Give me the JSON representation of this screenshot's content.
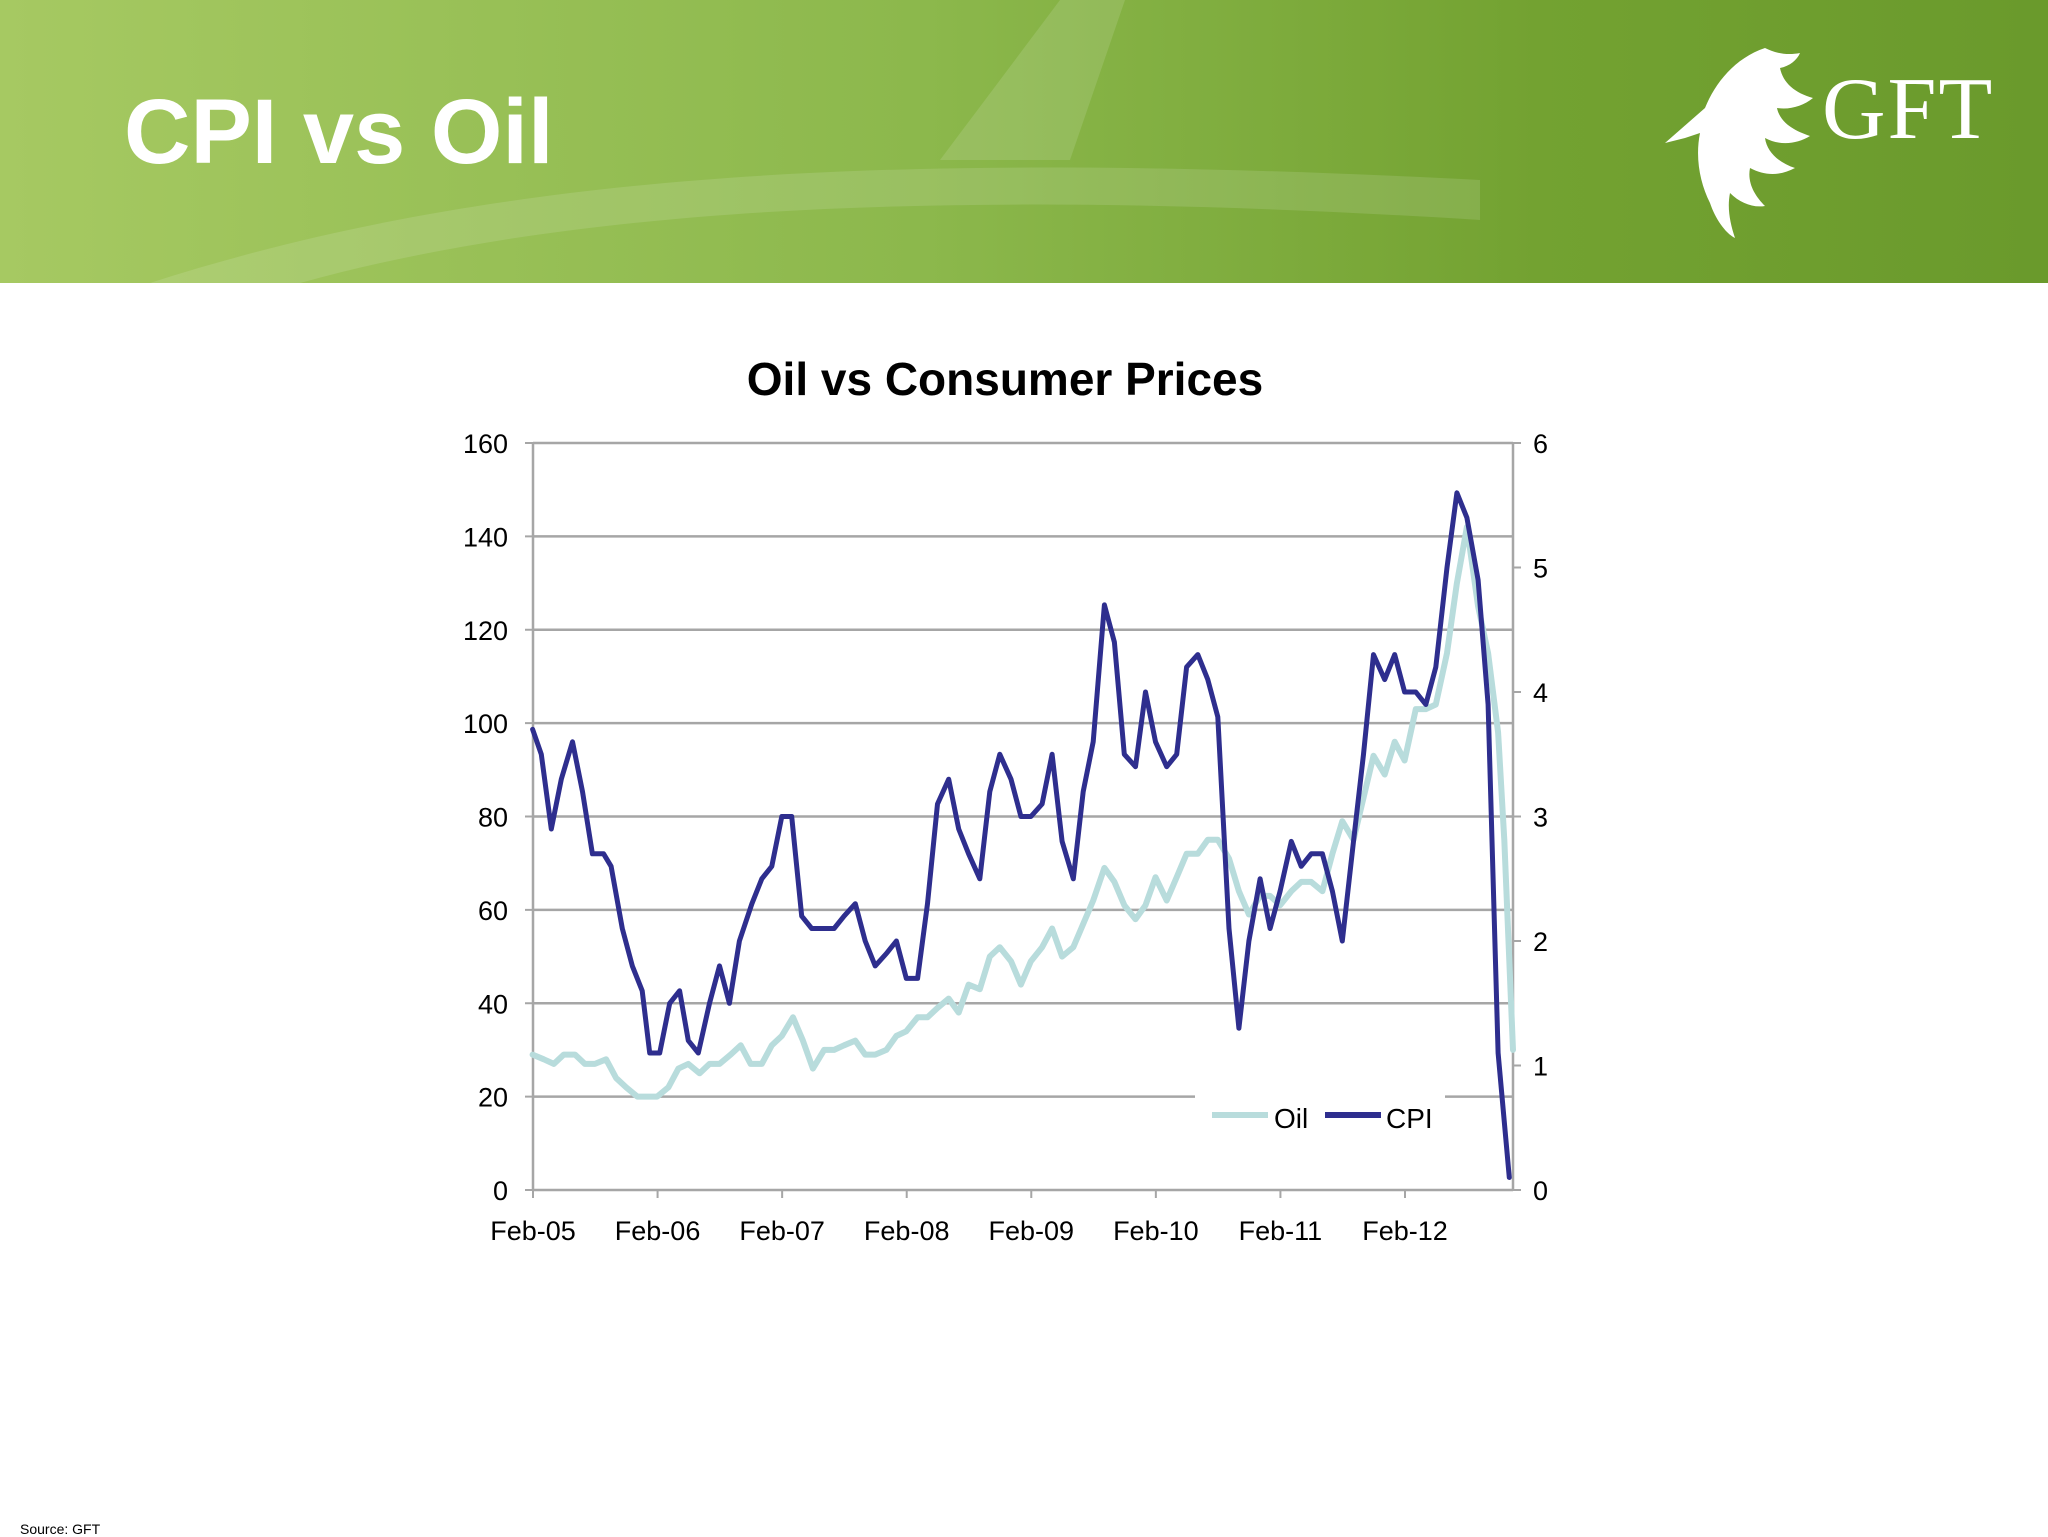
{
  "slide": {
    "title": "CPI vs Oil",
    "logo_text": "GFT",
    "source": "Source: GFT"
  },
  "colors": {
    "header_light": "#a6c962",
    "header_dark": "#6a9a2c",
    "oil": "#b8dcdc",
    "cpi": "#2e2e8e",
    "grid": "#a6a6a6"
  },
  "chart_data": {
    "type": "line",
    "title": "Oil vs Consumer Prices",
    "grid": true,
    "legend_position": "bottom-right",
    "x_tick_labels": [
      "Feb-05",
      "Feb-06",
      "Feb-07",
      "Feb-08",
      "Feb-09",
      "Feb-10",
      "Feb-11",
      "Feb-12"
    ],
    "x_range_years": [
      2005.083,
      2012.95
    ],
    "y_left": {
      "ylim": [
        0,
        160
      ],
      "ticks": [
        0,
        20,
        40,
        60,
        80,
        100,
        120,
        140,
        160
      ]
    },
    "y_right": {
      "ylim": [
        0,
        6
      ],
      "ticks": [
        0,
        1,
        2,
        3,
        4,
        5,
        6
      ]
    },
    "series": [
      {
        "name": "Oil",
        "axis": "left",
        "color": "#b8dcdc",
        "points": [
          [
            2005.08,
            29
          ],
          [
            2005.17,
            28
          ],
          [
            2005.25,
            27
          ],
          [
            2005.33,
            29
          ],
          [
            2005.42,
            29
          ],
          [
            2005.5,
            27
          ],
          [
            2005.58,
            27
          ],
          [
            2005.67,
            28
          ],
          [
            2005.75,
            24
          ],
          [
            2005.83,
            22
          ],
          [
            2005.92,
            20
          ],
          [
            2006.0,
            20
          ],
          [
            2006.08,
            20
          ],
          [
            2006.17,
            22
          ],
          [
            2006.25,
            26
          ],
          [
            2006.33,
            27
          ],
          [
            2006.42,
            25
          ],
          [
            2006.5,
            27
          ],
          [
            2006.58,
            27
          ],
          [
            2006.67,
            29
          ],
          [
            2006.75,
            31
          ],
          [
            2006.83,
            27
          ],
          [
            2006.92,
            27
          ],
          [
            2007.0,
            31
          ],
          [
            2007.08,
            33
          ],
          [
            2007.17,
            37
          ],
          [
            2007.25,
            32
          ],
          [
            2007.33,
            26
          ],
          [
            2007.42,
            30
          ],
          [
            2007.5,
            30
          ],
          [
            2007.58,
            31
          ],
          [
            2007.67,
            32
          ],
          [
            2007.75,
            29
          ],
          [
            2007.83,
            29
          ],
          [
            2007.92,
            30
          ],
          [
            2008.0,
            33
          ],
          [
            2008.08,
            34
          ],
          [
            2008.17,
            37
          ],
          [
            2008.25,
            37
          ],
          [
            2008.33,
            39
          ],
          [
            2008.42,
            41
          ],
          [
            2008.5,
            38
          ],
          [
            2008.58,
            44
          ],
          [
            2008.67,
            43
          ],
          [
            2008.75,
            50
          ],
          [
            2008.83,
            52
          ],
          [
            2008.92,
            49
          ],
          [
            2009.0,
            44
          ],
          [
            2009.08,
            49
          ],
          [
            2009.17,
            52
          ],
          [
            2009.25,
            56
          ],
          [
            2009.33,
            50
          ],
          [
            2009.42,
            52
          ],
          [
            2009.5,
            57
          ],
          [
            2009.58,
            62
          ],
          [
            2009.67,
            69
          ],
          [
            2009.75,
            66
          ],
          [
            2009.83,
            61
          ],
          [
            2009.92,
            58
          ],
          [
            2010.0,
            61
          ],
          [
            2010.08,
            67
          ],
          [
            2010.17,
            62
          ],
          [
            2010.25,
            67
          ],
          [
            2010.33,
            72
          ],
          [
            2010.42,
            72
          ],
          [
            2010.5,
            75
          ],
          [
            2010.58,
            75
          ],
          [
            2010.67,
            71
          ],
          [
            2010.75,
            64
          ],
          [
            2010.83,
            59
          ],
          [
            2010.92,
            63
          ],
          [
            2011.0,
            63
          ],
          [
            2011.08,
            61
          ],
          [
            2011.17,
            64
          ],
          [
            2011.25,
            66
          ],
          [
            2011.33,
            66
          ],
          [
            2011.42,
            64
          ],
          [
            2011.5,
            72
          ],
          [
            2011.58,
            79
          ],
          [
            2011.67,
            75
          ],
          [
            2011.75,
            84
          ],
          [
            2011.83,
            93
          ],
          [
            2011.92,
            89
          ],
          [
            2012.0,
            96
          ],
          [
            2012.08,
            92
          ],
          [
            2012.17,
            103
          ],
          [
            2012.25,
            103
          ],
          [
            2012.33,
            104
          ],
          [
            2012.42,
            115
          ],
          [
            2012.5,
            130
          ],
          [
            2012.58,
            142
          ],
          [
            2012.67,
            125
          ],
          [
            2012.75,
            115
          ],
          [
            2012.83,
            98
          ],
          [
            2012.88,
            75
          ],
          [
            2012.95,
            30
          ]
        ]
      },
      {
        "name": "CPI",
        "axis": "right",
        "color": "#2e2e8e",
        "points": [
          [
            2005.08,
            3.7
          ],
          [
            2005.15,
            3.5
          ],
          [
            2005.23,
            2.9
          ],
          [
            2005.31,
            3.3
          ],
          [
            2005.4,
            3.6
          ],
          [
            2005.48,
            3.2
          ],
          [
            2005.56,
            2.7
          ],
          [
            2005.65,
            2.7
          ],
          [
            2005.71,
            2.6
          ],
          [
            2005.8,
            2.1
          ],
          [
            2005.88,
            1.8
          ],
          [
            2005.96,
            1.6
          ],
          [
            2006.02,
            1.1
          ],
          [
            2006.1,
            1.1
          ],
          [
            2006.18,
            1.5
          ],
          [
            2006.26,
            1.6
          ],
          [
            2006.33,
            1.2
          ],
          [
            2006.41,
            1.1
          ],
          [
            2006.5,
            1.5
          ],
          [
            2006.58,
            1.8
          ],
          [
            2006.66,
            1.5
          ],
          [
            2006.74,
            2.0
          ],
          [
            2006.84,
            2.3
          ],
          [
            2006.92,
            2.5
          ],
          [
            2007.0,
            2.6
          ],
          [
            2007.08,
            3.0
          ],
          [
            2007.16,
            3.0
          ],
          [
            2007.24,
            2.2
          ],
          [
            2007.32,
            2.1
          ],
          [
            2007.42,
            2.1
          ],
          [
            2007.5,
            2.1
          ],
          [
            2007.58,
            2.2
          ],
          [
            2007.67,
            2.3
          ],
          [
            2007.75,
            2.0
          ],
          [
            2007.83,
            1.8
          ],
          [
            2007.92,
            1.9
          ],
          [
            2008.0,
            2.0
          ],
          [
            2008.08,
            1.7
          ],
          [
            2008.17,
            1.7
          ],
          [
            2008.25,
            2.3
          ],
          [
            2008.33,
            3.1
          ],
          [
            2008.42,
            3.3
          ],
          [
            2008.5,
            2.9
          ],
          [
            2008.58,
            2.7
          ],
          [
            2008.67,
            2.5
          ],
          [
            2008.75,
            3.2
          ],
          [
            2008.83,
            3.5
          ],
          [
            2008.92,
            3.3
          ],
          [
            2009.0,
            3.0
          ],
          [
            2009.08,
            3.0
          ],
          [
            2009.17,
            3.1
          ],
          [
            2009.25,
            3.5
          ],
          [
            2009.33,
            2.8
          ],
          [
            2009.42,
            2.5
          ],
          [
            2009.5,
            3.2
          ],
          [
            2009.58,
            3.6
          ],
          [
            2009.67,
            4.7
          ],
          [
            2009.75,
            4.4
          ],
          [
            2009.83,
            3.5
          ],
          [
            2009.92,
            3.4
          ],
          [
            2010.0,
            4.0
          ],
          [
            2010.08,
            3.6
          ],
          [
            2010.17,
            3.4
          ],
          [
            2010.25,
            3.5
          ],
          [
            2010.33,
            4.2
          ],
          [
            2010.42,
            4.3
          ],
          [
            2010.5,
            4.1
          ],
          [
            2010.58,
            3.8
          ],
          [
            2010.67,
            2.1
          ],
          [
            2010.75,
            1.3
          ],
          [
            2010.83,
            2.0
          ],
          [
            2010.92,
            2.5
          ],
          [
            2011.0,
            2.1
          ],
          [
            2011.08,
            2.4
          ],
          [
            2011.17,
            2.8
          ],
          [
            2011.25,
            2.6
          ],
          [
            2011.33,
            2.7
          ],
          [
            2011.42,
            2.7
          ],
          [
            2011.5,
            2.4
          ],
          [
            2011.58,
            2.0
          ],
          [
            2011.67,
            2.8
          ],
          [
            2011.75,
            3.5
          ],
          [
            2011.83,
            4.3
          ],
          [
            2011.92,
            4.1
          ],
          [
            2012.0,
            4.3
          ],
          [
            2012.08,
            4.0
          ],
          [
            2012.17,
            4.0
          ],
          [
            2012.25,
            3.9
          ],
          [
            2012.33,
            4.2
          ],
          [
            2012.42,
            5.0
          ],
          [
            2012.5,
            5.6
          ],
          [
            2012.58,
            5.4
          ],
          [
            2012.67,
            4.9
          ],
          [
            2012.75,
            3.9
          ],
          [
            2012.83,
            1.1
          ],
          [
            2012.92,
            0.1
          ]
        ]
      }
    ]
  }
}
